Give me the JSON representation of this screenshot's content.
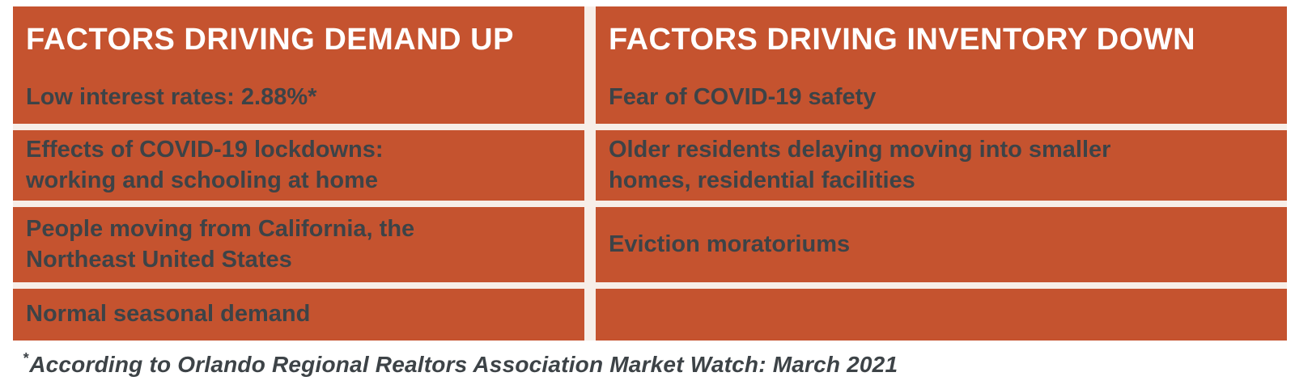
{
  "colors": {
    "cell_bg": "#c5532f",
    "header_text": "#ffffff",
    "body_text": "#3d4347",
    "grid_gap": "#f7eee8",
    "page_bg": "#ffffff"
  },
  "chart_data": {
    "type": "table",
    "columns": [
      "FACTORS DRIVING DEMAND UP",
      "FACTORS DRIVING INVENTORY DOWN"
    ],
    "rows": [
      [
        "Low interest rates: 2.88%*",
        "Fear of COVID-19 safety"
      ],
      [
        "Effects of COVID-19 lockdowns: working and schooling at home",
        "Older residents delaying moving into smaller homes, residential facilities"
      ],
      [
        "People moving from California, the Northeast United States",
        "Eviction moratoriums"
      ],
      [
        "Normal seasonal demand",
        ""
      ]
    ],
    "footnote": "*According to Orlando Regional Realtors Association Market Watch: March 2021",
    "legend_position": "none",
    "grid": "white gaps between solid orange cells"
  },
  "table": {
    "columns": [
      {
        "header": "FACTORS DRIVING DEMAND UP",
        "items": [
          "Low interest rates: 2.88%*",
          "Effects of COVID-19 lockdowns:\nworking and schooling at home",
          "People moving from California, the\nNortheast United States",
          "Normal seasonal demand"
        ]
      },
      {
        "header": "FACTORS DRIVING INVENTORY DOWN",
        "items": [
          "Fear of COVID-19 safety",
          "Older residents delaying moving into smaller\nhomes, residential facilities",
          "Eviction moratoriums",
          ""
        ]
      }
    ]
  },
  "footnote": {
    "marker": "*",
    "text": "According to Orlando Regional Realtors Association Market Watch: March 2021"
  }
}
